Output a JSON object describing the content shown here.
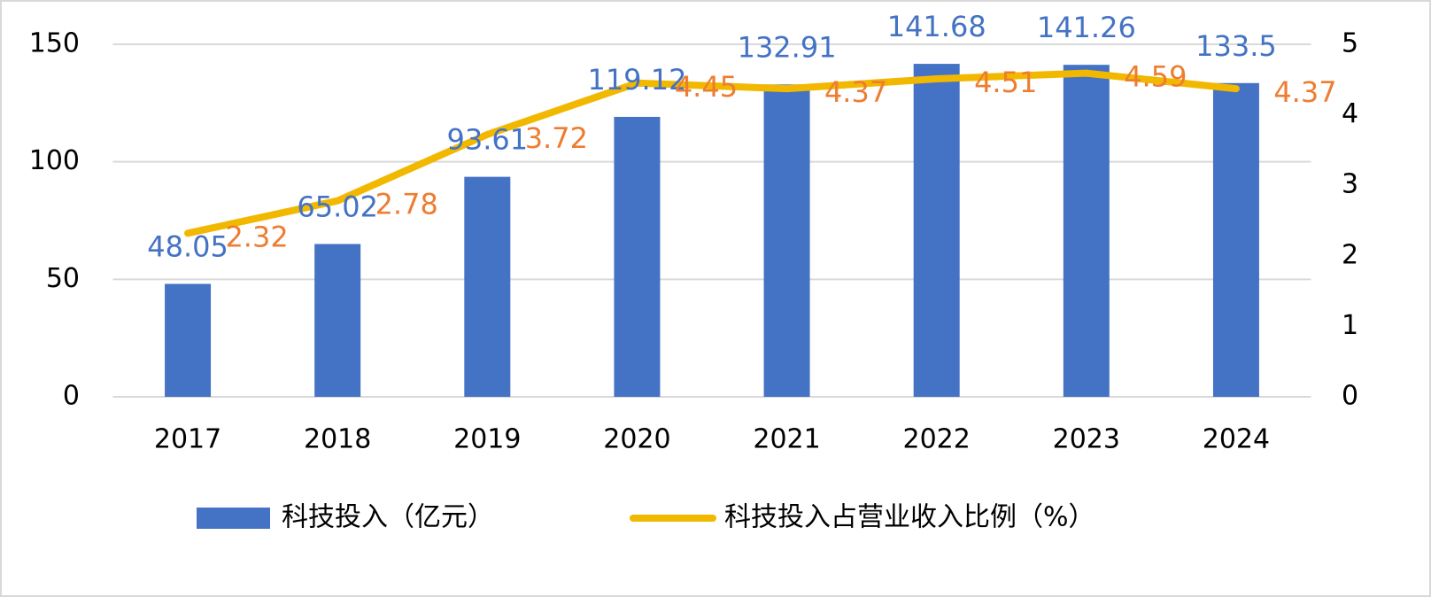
{
  "chart_data": {
    "type": "bar",
    "categories": [
      "2017",
      "2018",
      "2019",
      "2020",
      "2021",
      "2022",
      "2023",
      "2024"
    ],
    "series": [
      {
        "name": "科技投入（亿元）",
        "type": "bar",
        "color": "#4472c4",
        "label_color": "#4472c4",
        "values": [
          48.05,
          65.02,
          93.61,
          119.12,
          132.91,
          141.68,
          141.26,
          133.5
        ]
      },
      {
        "name": "科技投入占营业收入比例（%）",
        "type": "line",
        "axis": "y2",
        "color": "#f2b800",
        "label_color": "#ed7d31",
        "values": [
          2.32,
          2.78,
          3.72,
          4.45,
          4.37,
          4.51,
          4.59,
          4.37
        ]
      }
    ],
    "ylim": [
      0,
      150
    ],
    "yticks": [
      0,
      50,
      100,
      150
    ],
    "y2lim": [
      0,
      5
    ],
    "y2ticks": [
      0,
      1,
      2,
      3,
      4,
      5
    ],
    "grid": true,
    "legend": "bottom"
  }
}
